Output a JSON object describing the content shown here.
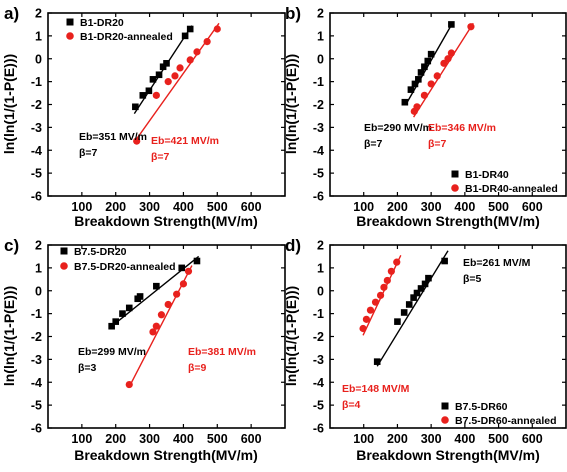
{
  "colors": {
    "series_black": "#000000",
    "series_red": "#e8211d",
    "axis": "#000000"
  },
  "chart_data": [
    {
      "panel_label": "a)",
      "type": "scatter",
      "xlabel": "Breakdown Strength(MV/m)",
      "ylabel": "ln(ln(1/(1-P(E)))",
      "xlim": [
        0,
        700
      ],
      "ylim": [
        -6,
        2
      ],
      "xticks": [
        "100",
        "200",
        "300",
        "400",
        "500",
        "600"
      ],
      "yticks": [
        "-6",
        "-5",
        "-4",
        "-3",
        "-2",
        "-1",
        "0",
        "1",
        "2"
      ],
      "legend": "top-left",
      "series": [
        {
          "name": "B1-DR20",
          "color": "#000000",
          "marker": "square",
          "x": [
            258,
            280,
            298,
            310,
            328,
            340,
            350,
            405,
            420
          ],
          "y": [
            -2.1,
            -1.6,
            -1.4,
            -0.9,
            -0.7,
            -0.35,
            -0.2,
            1.0,
            1.3
          ],
          "fit": {
            "x": [
              255,
              425
            ],
            "y": [
              -2.4,
              1.45
            ]
          }
        },
        {
          "name": "B1-DR20-annealed",
          "color": "#e8211d",
          "marker": "circle",
          "x": [
            262,
            320,
            355,
            375,
            390,
            420,
            440,
            470,
            500
          ],
          "y": [
            -3.6,
            -1.6,
            -1.0,
            -0.75,
            -0.4,
            -0.05,
            0.3,
            0.75,
            1.3
          ],
          "fit": {
            "x": [
              262,
              505
            ],
            "y": [
              -3.5,
              1.55
            ]
          }
        }
      ],
      "annotations": [
        {
          "lines": [
            "Eb=351 MV/m",
            "β=7"
          ],
          "color": "#000000"
        },
        {
          "lines": [
            "Eb=421 MV/m",
            "β=7"
          ],
          "color": "#e8211d"
        }
      ]
    },
    {
      "panel_label": "b)",
      "type": "scatter",
      "xlabel": "Breakdown Strength(MV/m)",
      "ylabel": "ln(ln(1/(1-P(E)))",
      "xlim": [
        0,
        700
      ],
      "ylim": [
        -6,
        2
      ],
      "xticks": [
        "100",
        "200",
        "300",
        "400",
        "500",
        "600"
      ],
      "yticks": [
        "-6",
        "-5",
        "-4",
        "-3",
        "-2",
        "-1",
        "0",
        "1",
        "2"
      ],
      "legend": "bottom-right",
      "series": [
        {
          "name": "B1-DR40",
          "color": "#000000",
          "marker": "square",
          "x": [
            222,
            240,
            252,
            262,
            270,
            280,
            290,
            300,
            360
          ],
          "y": [
            -1.9,
            -1.35,
            -1.1,
            -0.9,
            -0.6,
            -0.35,
            -0.1,
            0.2,
            1.5
          ],
          "fit": {
            "x": [
              225,
              365
            ],
            "y": [
              -2.0,
              1.6
            ]
          }
        },
        {
          "name": "B1-DR40-annealed",
          "color": "#e8211d",
          "marker": "circle",
          "x": [
            250,
            258,
            280,
            300,
            318,
            338,
            350,
            360,
            418
          ],
          "y": [
            -2.3,
            -2.1,
            -1.6,
            -1.1,
            -0.75,
            -0.2,
            0.0,
            0.25,
            1.4
          ],
          "fit": {
            "x": [
              248,
              425
            ],
            "y": [
              -2.55,
              1.55
            ]
          }
        }
      ],
      "annotations": [
        {
          "lines": [
            "Eb=290 MV/m",
            "β=7"
          ],
          "color": "#000000"
        },
        {
          "lines": [
            "Eb=346 MV/m",
            "β=7"
          ],
          "color": "#e8211d"
        }
      ]
    },
    {
      "panel_label": "c)",
      "type": "scatter",
      "xlabel": "Breakdown Strength(MV/m)",
      "ylabel": "ln(ln(1/(1-P(E)))",
      "xlim": [
        0,
        700
      ],
      "ylim": [
        -6,
        2
      ],
      "xticks": [
        "100",
        "200",
        "300",
        "400",
        "500",
        "600"
      ],
      "yticks": [
        "-6",
        "-5",
        "-4",
        "-3",
        "-2",
        "-1",
        "0",
        "1",
        "2"
      ],
      "legend": "top-left",
      "series": [
        {
          "name": "B7.5-DR20",
          "color": "#000000",
          "marker": "square",
          "x": [
            188,
            200,
            220,
            240,
            265,
            272,
            320,
            395,
            440
          ],
          "y": [
            -1.55,
            -1.35,
            -1.0,
            -0.75,
            -0.35,
            -0.25,
            0.2,
            1.0,
            1.3
          ],
          "fit": {
            "x": [
              180,
              445
            ],
            "y": [
              -1.65,
              1.5
            ]
          }
        },
        {
          "name": "B7.5-DR20-annealed",
          "color": "#e8211d",
          "marker": "circle",
          "x": [
            240,
            310,
            320,
            335,
            355,
            380,
            400,
            415
          ],
          "y": [
            -4.1,
            -1.8,
            -1.55,
            -1.05,
            -0.6,
            -0.15,
            0.3,
            0.85
          ],
          "fit": {
            "x": [
              240,
              425
            ],
            "y": [
              -4.2,
              1.1
            ]
          }
        }
      ],
      "annotations": [
        {
          "lines": [
            "Eb=299 MV/m",
            "β=3"
          ],
          "color": "#000000"
        },
        {
          "lines": [
            "Eb=381 MV/m",
            "β=9"
          ],
          "color": "#e8211d"
        }
      ]
    },
    {
      "panel_label": "d)",
      "type": "scatter",
      "xlabel": "Breakdown Strength(MV/m)",
      "ylabel": "ln(ln(1/(1-P(E)))",
      "xlim": [
        0,
        700
      ],
      "ylim": [
        -6,
        2
      ],
      "xticks": [
        "100",
        "200",
        "300",
        "400",
        "500",
        "600"
      ],
      "yticks": [
        "-6",
        "-5",
        "-4",
        "-3",
        "-2",
        "-1",
        "0",
        "1",
        "2"
      ],
      "legend": "bottom-right",
      "series": [
        {
          "name": "B7.5-DR60",
          "color": "#000000",
          "marker": "square",
          "x": [
            140,
            200,
            220,
            235,
            248,
            258,
            270,
            282,
            292,
            340
          ],
          "y": [
            -3.1,
            -1.35,
            -0.95,
            -0.6,
            -0.3,
            -0.1,
            0.1,
            0.3,
            0.55,
            1.3
          ],
          "fit": {
            "x": [
              140,
              350
            ],
            "y": [
              -3.3,
              1.75
            ]
          }
        },
        {
          "name": "B7.5-DR60-annealed",
          "color": "#e8211d",
          "marker": "circle",
          "x": [
            98,
            108,
            120,
            135,
            150,
            160,
            170,
            182,
            198
          ],
          "y": [
            -1.65,
            -1.25,
            -0.85,
            -0.5,
            -0.2,
            0.15,
            0.45,
            0.85,
            1.25
          ],
          "fit": {
            "x": [
              98,
              210
            ],
            "y": [
              -1.95,
              1.55
            ]
          }
        }
      ],
      "annotations": [
        {
          "lines": [
            "Eb=261 MV/M",
            "β=5"
          ],
          "color": "#000000"
        },
        {
          "lines": [
            "Eb=148 MV/M",
            "β=4"
          ],
          "color": "#e8211d"
        }
      ]
    }
  ]
}
